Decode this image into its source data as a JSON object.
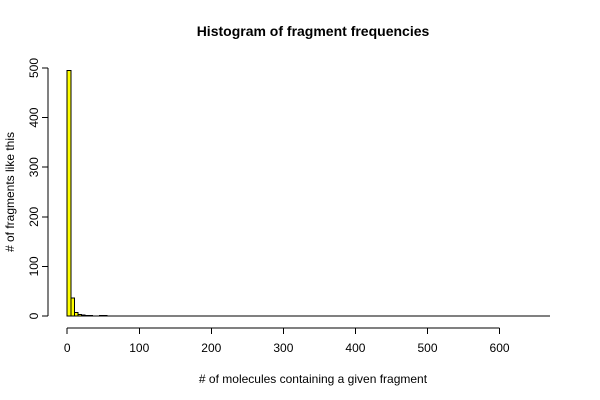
{
  "chart_data": {
    "type": "bar",
    "title": "Histogram of fragment frequencies",
    "xlabel": "# of molecules containing a given fragment",
    "ylabel": "# of fragments like this",
    "bar_color": "#FFFF00",
    "bar_border_color": "#000000",
    "bin_width": 5,
    "x": [
      0,
      5,
      10,
      15,
      20,
      25,
      30,
      35,
      40,
      45,
      50
    ],
    "values": [
      495,
      36,
      7,
      3,
      2,
      1,
      1,
      0,
      0,
      1,
      1
    ],
    "xlim": [
      -10,
      670
    ],
    "ylim": [
      0,
      500
    ],
    "xticks": [
      0,
      100,
      200,
      300,
      400,
      500,
      600
    ],
    "yticks": [
      0,
      100,
      200,
      300,
      400,
      500
    ],
    "xtick_labels": [
      "0",
      "100",
      "200",
      "300",
      "400",
      "500",
      "600"
    ],
    "ytick_labels": [
      "0",
      "100",
      "200",
      "300",
      "400",
      "500"
    ],
    "grid": false,
    "legend": "none"
  }
}
